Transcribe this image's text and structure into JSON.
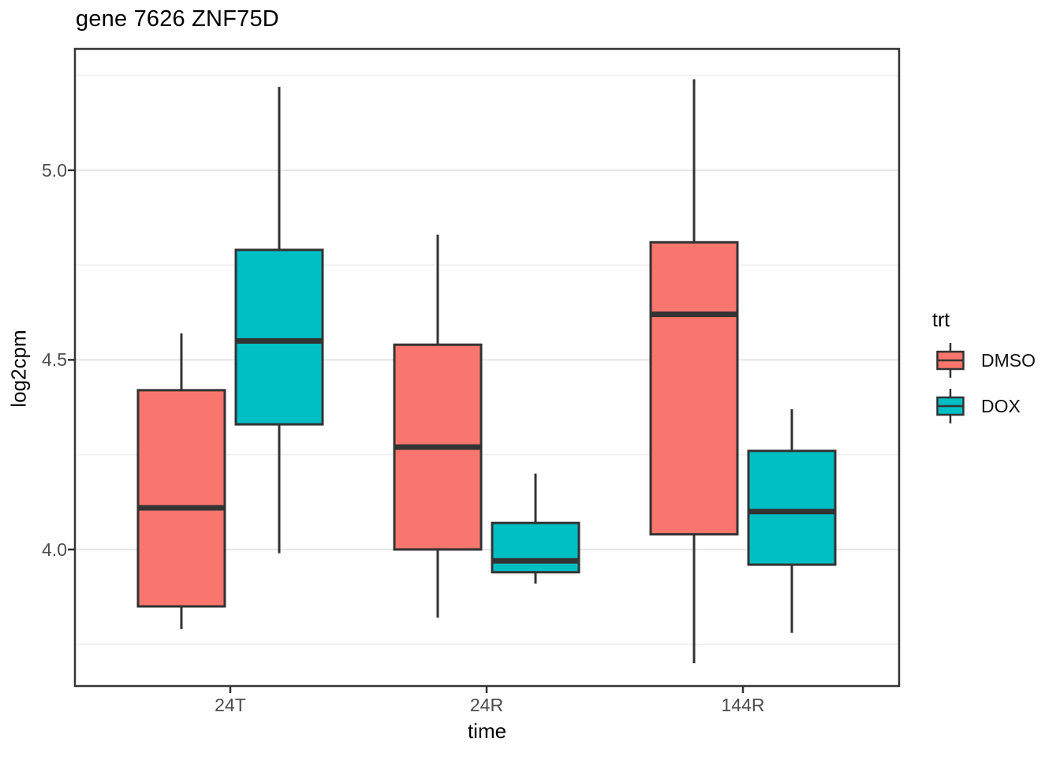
{
  "chart_data": {
    "type": "boxplot",
    "title": "gene 7626 ZNF75D",
    "xlabel": "time",
    "ylabel": "log2cpm",
    "categories": [
      "24T",
      "24R",
      "144R"
    ],
    "legend": {
      "title": "trt",
      "position": "right"
    },
    "series": [
      {
        "name": "DMSO",
        "color": "#F8766D",
        "boxes": [
          {
            "category": "24T",
            "lower": 3.79,
            "q1": 3.85,
            "median": 4.11,
            "q3": 4.42,
            "upper": 4.57
          },
          {
            "category": "24R",
            "lower": 3.82,
            "q1": 4.0,
            "median": 4.27,
            "q3": 4.54,
            "upper": 4.83
          },
          {
            "category": "144R",
            "lower": 3.7,
            "q1": 4.04,
            "median": 4.62,
            "q3": 4.81,
            "upper": 5.24
          }
        ]
      },
      {
        "name": "DOX",
        "color": "#00BFC4",
        "boxes": [
          {
            "category": "24T",
            "lower": 3.99,
            "q1": 4.33,
            "median": 4.55,
            "q3": 4.79,
            "upper": 5.22
          },
          {
            "category": "24R",
            "lower": 3.91,
            "q1": 3.94,
            "median": 3.97,
            "q3": 4.07,
            "upper": 4.2
          },
          {
            "category": "144R",
            "lower": 3.78,
            "q1": 3.96,
            "median": 4.1,
            "q3": 4.26,
            "upper": 4.37
          }
        ]
      }
    ],
    "y_axis": {
      "ticks": [
        4.0,
        4.5,
        5.0
      ],
      "tick_labels": [
        "4.0",
        "4.5",
        "5.0"
      ],
      "minor_ticks": [
        3.75,
        4.25,
        4.75,
        5.25
      ],
      "range": [
        3.64,
        5.32
      ],
      "grid": true
    },
    "style": {
      "outline_color": "#333333",
      "major_grid_color": "#e8e8e8",
      "minor_grid_color": "#f0f0f0",
      "panel_border_color": "#333333",
      "axis_text_color": "#4d4d4d"
    }
  }
}
